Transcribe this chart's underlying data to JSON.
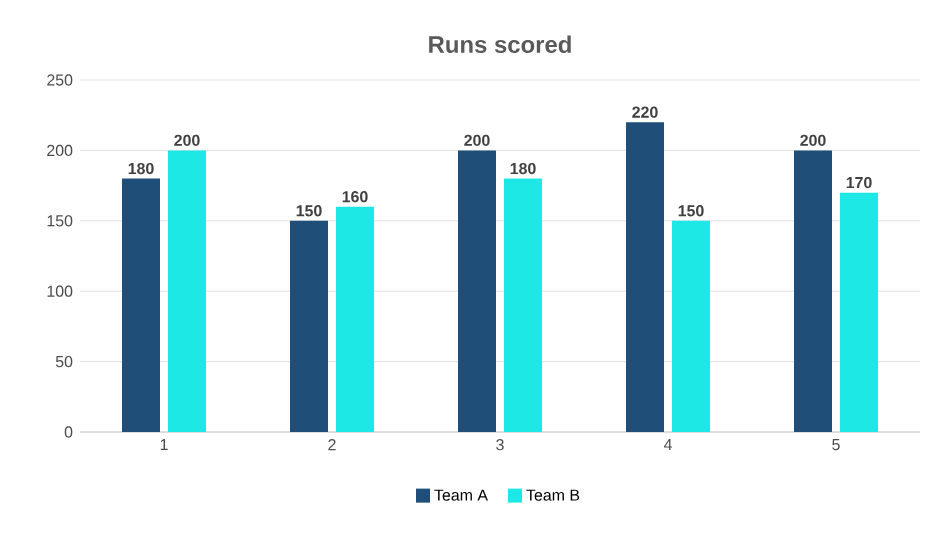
{
  "chart_data": {
    "type": "bar",
    "title": "Runs scored",
    "categories": [
      "1",
      "2",
      "3",
      "4",
      "5"
    ],
    "series": [
      {
        "name": "Team A",
        "color": "#1f4e79",
        "values": [
          180,
          150,
          200,
          220,
          200
        ]
      },
      {
        "name": "Team B",
        "color": "#1ee8e6",
        "values": [
          200,
          160,
          180,
          150,
          170
        ]
      }
    ],
    "ylim": [
      0,
      250
    ],
    "yticks": [
      0,
      50,
      100,
      150,
      200,
      250
    ],
    "grid": "y",
    "legend": "bottom",
    "data_labels": true
  }
}
